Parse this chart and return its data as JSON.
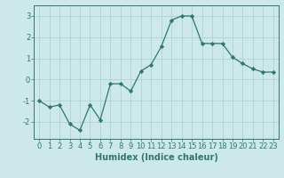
{
  "x": [
    0,
    1,
    2,
    3,
    4,
    5,
    6,
    7,
    8,
    9,
    10,
    11,
    12,
    13,
    14,
    15,
    16,
    17,
    18,
    19,
    20,
    21,
    22,
    23
  ],
  "y": [
    -1.0,
    -1.3,
    -1.2,
    -2.1,
    -2.4,
    -1.2,
    -1.9,
    -0.2,
    -0.2,
    -0.55,
    0.4,
    0.7,
    1.55,
    2.8,
    3.0,
    3.0,
    1.7,
    1.7,
    1.7,
    1.05,
    0.75,
    0.5,
    0.35,
    0.35
  ],
  "line_color": "#2a7a6e",
  "marker": "D",
  "marker_size": 2.2,
  "bg_color": "#cce8e8",
  "grid_color": "#aacfcf",
  "xlabel": "Humidex (Indice chaleur)",
  "ylim": [
    -2.8,
    3.5
  ],
  "xlim": [
    -0.5,
    23.5
  ],
  "yticks": [
    -2,
    -1,
    0,
    1,
    2,
    3
  ],
  "xticks": [
    0,
    1,
    2,
    3,
    4,
    5,
    6,
    7,
    8,
    9,
    10,
    11,
    12,
    13,
    14,
    15,
    16,
    17,
    18,
    19,
    20,
    21,
    22,
    23
  ],
  "tick_color": "#2a7a6e",
  "label_fontsize": 7.0,
  "tick_fontsize": 6.0
}
